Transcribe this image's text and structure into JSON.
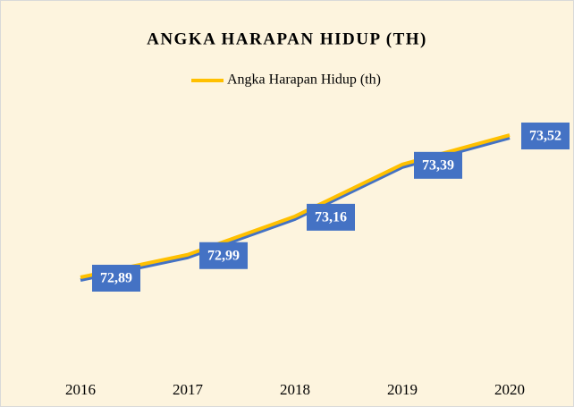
{
  "chart_data": {
    "type": "line",
    "title": "ANGKA HARAPAN HIDUP (TH)",
    "categories": [
      "2016",
      "2017",
      "2018",
      "2019",
      "2020"
    ],
    "series": [
      {
        "name": "Angka Harapan Hidup (th)",
        "color": "#ffc000",
        "values": [
          72.89,
          72.99,
          73.16,
          73.39,
          73.52
        ],
        "value_labels": [
          "72,89",
          "72,99",
          "73,16",
          "73,39",
          "73,52"
        ]
      }
    ],
    "ylim": [
      72.5,
      73.7
    ],
    "legend": "top",
    "label_color": "#4472c4",
    "shadow_color": "#4472c4"
  }
}
